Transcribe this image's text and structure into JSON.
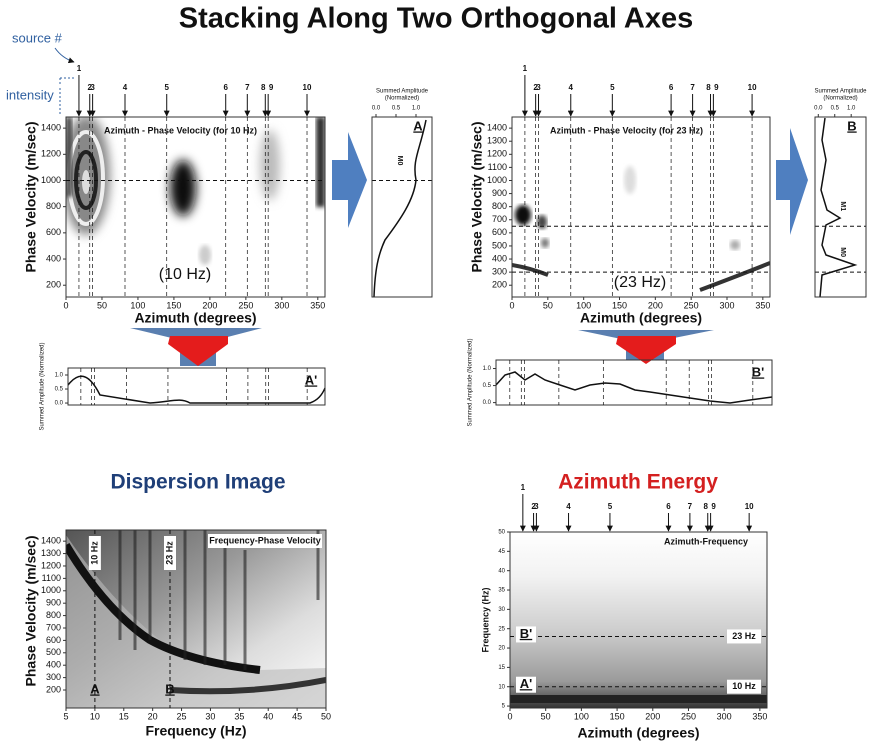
{
  "title": "Stacking Along Two Orthogonal Axes",
  "annotations": {
    "source": "source #",
    "intensity": "intensity"
  },
  "sources": {
    "labels": [
      1,
      2,
      3,
      4,
      5,
      6,
      7,
      8,
      9,
      10
    ],
    "azimuths": [
      18,
      33,
      37,
      82,
      140,
      222,
      252,
      277,
      281,
      335
    ]
  },
  "top_left": {
    "title": "Azimuth - Phase Velocity (for 10 Hz)",
    "frequency_label": "(10 Hz)",
    "xlabel": "Azimuth (degrees)",
    "ylabel": "Phase Velocity (m/sec)",
    "xlim": [
      0,
      360
    ],
    "ylim": [
      110,
      1485
    ],
    "xticks": [
      0,
      50,
      100,
      150,
      200,
      250,
      300,
      350
    ],
    "yticks": [
      200,
      400,
      600,
      800,
      1000,
      1200,
      1400
    ],
    "picked_velocities": [
      1000
    ]
  },
  "side_A": {
    "title_lines": [
      "Summed Amplitude",
      "(Normalized)"
    ],
    "label": "A",
    "peak_labels": [
      "M0"
    ],
    "peak_velocities": [
      1000
    ],
    "xlim": [
      -0.1,
      1.4
    ],
    "xticks": [
      {
        "value": 0,
        "label": "0.0"
      },
      {
        "value": 0.5,
        "label": "0.5"
      },
      {
        "value": 1,
        "label": "1.0"
      }
    ]
  },
  "bottom_A": {
    "ylabel": "Summed Amplitude (Normalized)",
    "label": "A'",
    "ylim": [
      -0.07,
      1.25
    ],
    "yticks": [
      {
        "value": 0,
        "label": "0.0"
      },
      {
        "value": 0.5,
        "label": "0.5"
      },
      {
        "value": 1,
        "label": "1.0"
      }
    ]
  },
  "top_right": {
    "title": "Azimuth - Phase Velocity (for 23 Hz)",
    "frequency_label": "(23 Hz)",
    "xlabel": "Azimuth (degrees)",
    "ylabel": "Phase Velocity (m/sec)",
    "xlim": [
      0,
      360
    ],
    "ylim": [
      110,
      1485
    ],
    "xticks": [
      0,
      50,
      100,
      150,
      200,
      250,
      300,
      350
    ],
    "yticks": [
      200,
      300,
      400,
      500,
      600,
      700,
      800,
      900,
      1000,
      1100,
      1200,
      1300,
      1400
    ],
    "picked_velocities": [
      650,
      300
    ]
  },
  "side_B": {
    "title_lines": [
      "Summed Amplitude",
      "(Normalized)"
    ],
    "label": "B",
    "peak_labels": [
      "M1",
      "M0"
    ],
    "peak_velocities": [
      650,
      300
    ],
    "xlim": [
      -0.1,
      1.45
    ],
    "xticks": [
      {
        "value": 0,
        "label": "0.0"
      },
      {
        "value": 0.5,
        "label": "0.5"
      },
      {
        "value": 1,
        "label": "1.0"
      }
    ]
  },
  "bottom_B": {
    "ylabel": "Summed Amplitude (Normalized)",
    "label": "B'",
    "ylim": [
      -0.07,
      1.25
    ],
    "yticks": [
      {
        "value": 0,
        "label": "0.0"
      },
      {
        "value": 0.5,
        "label": "0.5"
      },
      {
        "value": 1,
        "label": "1.0"
      }
    ]
  },
  "dispersion": {
    "heading": "Dispersion Image",
    "title": "Frequency-Phase Velocity",
    "xlabel": "Frequency (Hz)",
    "ylabel": "Phase Velocity (m/sec)",
    "xlim": [
      5,
      50
    ],
    "ylim": [
      55,
      1490
    ],
    "xticks": [
      5,
      10,
      15,
      20,
      25,
      30,
      35,
      40,
      45,
      50
    ],
    "yticks": [
      200,
      300,
      400,
      500,
      600,
      700,
      800,
      900,
      1000,
      1100,
      1200,
      1300,
      1400
    ],
    "picks": [
      {
        "frequency": 10,
        "label": "10 Hz",
        "marker": "A"
      },
      {
        "frequency": 23,
        "label": "23 Hz",
        "marker": "B"
      }
    ]
  },
  "azimuth_energy": {
    "heading": "Azimuth Energy",
    "title": "Azimuth-Frequency",
    "xlabel": "Azimuth (degrees)",
    "ylabel": "Frequency (Hz)",
    "xlim": [
      0,
      360
    ],
    "ylim": [
      4.5,
      50
    ],
    "xticks": [
      0,
      50,
      100,
      150,
      200,
      250,
      300,
      350
    ],
    "yticks": [
      5,
      10,
      15,
      20,
      25,
      30,
      35,
      40,
      45,
      50
    ],
    "picks": [
      {
        "frequency": 23,
        "label": "23 Hz",
        "marker": "B'"
      },
      {
        "frequency": 10,
        "label": "10 Hz",
        "marker": "A'"
      }
    ]
  }
}
